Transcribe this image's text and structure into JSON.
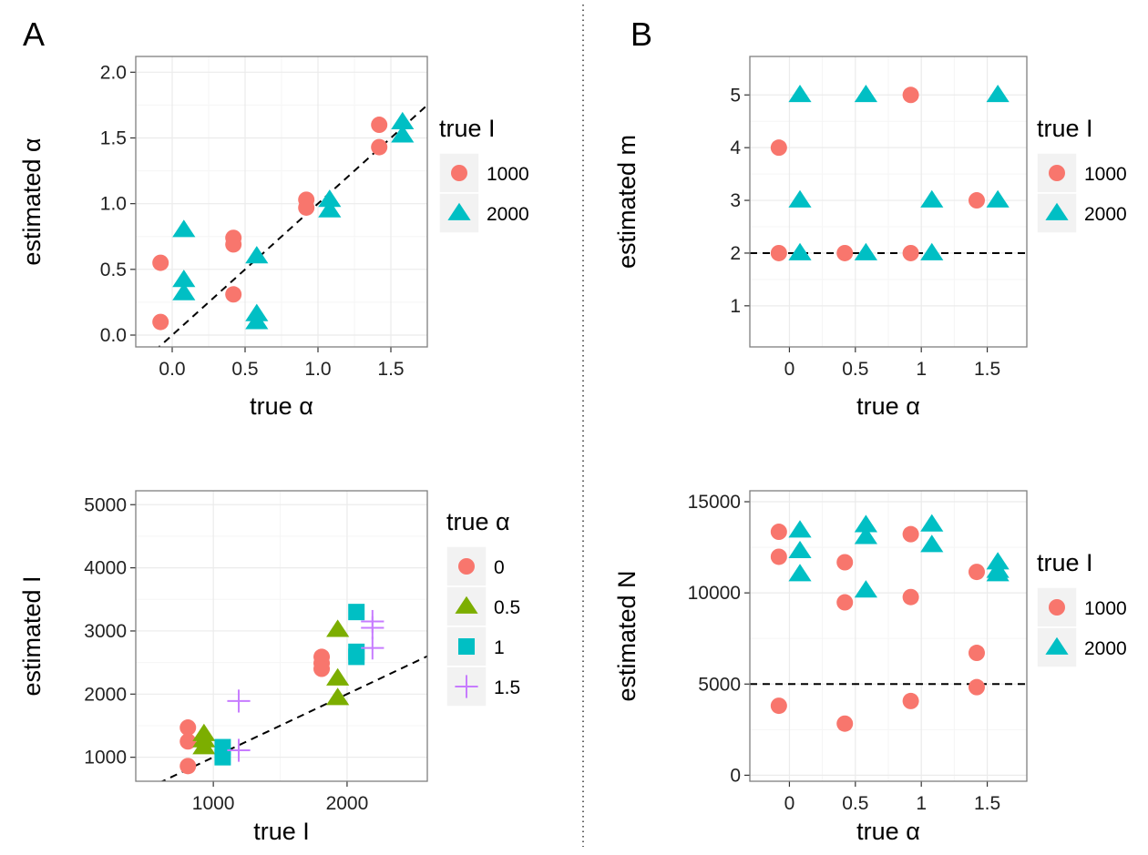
{
  "figure": {
    "panel_a": "A",
    "panel_b": "B"
  },
  "colors": {
    "c0": "#F8766D",
    "c1": "#7CAE00",
    "c2": "#00BFC4",
    "c3": "#C77CFF",
    "grid": "#ebebeb",
    "frame": "#7f7f7f"
  },
  "chart_data": [
    {
      "id": "tl",
      "type": "scatter",
      "xlabel": "true α",
      "ylabel": "estimated α",
      "xlim": [
        -0.25,
        1.75
      ],
      "ylim": [
        -0.09,
        2.12
      ],
      "xticks": [
        0.0,
        0.5,
        1.0,
        1.5
      ],
      "xtick_labels": [
        "0.0",
        "0.5",
        "1.0",
        "1.5"
      ],
      "yticks": [
        0.0,
        0.5,
        1.0,
        1.5,
        2.0
      ],
      "ytick_labels": [
        "0.0",
        "0.5",
        "1.0",
        "1.5",
        "2.0"
      ],
      "reference_line": {
        "style": "dashed",
        "slope": 1,
        "intercept": 0
      },
      "legend": {
        "title": "true I",
        "position": "right"
      },
      "series": [
        {
          "name": "1000",
          "shape": "circle",
          "color": "#F8766D",
          "points": [
            [
              -0.08,
              0.55
            ],
            [
              -0.08,
              0.1
            ],
            [
              0.42,
              0.74
            ],
            [
              0.42,
              0.69
            ],
            [
              0.42,
              0.31
            ],
            [
              0.92,
              1.03
            ],
            [
              0.92,
              0.97
            ],
            [
              1.42,
              1.6
            ],
            [
              1.42,
              1.43
            ]
          ]
        },
        {
          "name": "2000",
          "shape": "triangle",
          "color": "#00BFC4",
          "points": [
            [
              0.08,
              0.8
            ],
            [
              0.08,
              0.42
            ],
            [
              0.08,
              0.32
            ],
            [
              0.58,
              0.6
            ],
            [
              0.58,
              0.16
            ],
            [
              0.58,
              0.1
            ],
            [
              1.08,
              1.03
            ],
            [
              1.08,
              0.95
            ],
            [
              1.58,
              1.62
            ],
            [
              1.58,
              1.52
            ]
          ]
        }
      ]
    },
    {
      "id": "tr",
      "type": "scatter",
      "xlabel": "true α",
      "ylabel": "estimated m",
      "xlim": [
        -0.3,
        1.8
      ],
      "ylim": [
        0.22,
        5.73
      ],
      "xticks": [
        0,
        0.5,
        1,
        1.5
      ],
      "xtick_labels": [
        "0",
        "0.5",
        "1",
        "1.5"
      ],
      "yticks": [
        1,
        2,
        3,
        4,
        5
      ],
      "ytick_labels": [
        "1",
        "2",
        "3",
        "4",
        "5"
      ],
      "reference_line": {
        "style": "dashed",
        "y": 2
      },
      "legend": {
        "title": "true I",
        "position": "right"
      },
      "series": [
        {
          "name": "1000",
          "shape": "circle",
          "color": "#F8766D",
          "points": [
            [
              -0.08,
              4
            ],
            [
              -0.08,
              2
            ],
            [
              0.42,
              2
            ],
            [
              0.92,
              5
            ],
            [
              0.92,
              2
            ],
            [
              1.42,
              3
            ]
          ]
        },
        {
          "name": "2000",
          "shape": "triangle",
          "color": "#00BFC4",
          "points": [
            [
              0.08,
              5
            ],
            [
              0.08,
              3
            ],
            [
              0.08,
              2
            ],
            [
              0.58,
              5
            ],
            [
              0.58,
              2
            ],
            [
              1.08,
              3
            ],
            [
              1.08,
              2
            ],
            [
              1.58,
              5
            ],
            [
              1.58,
              3
            ]
          ]
        }
      ]
    },
    {
      "id": "bl",
      "type": "scatter",
      "xlabel": "true I",
      "ylabel": "estimated I",
      "xlim": [
        420,
        2600
      ],
      "ylim": [
        620,
        5220
      ],
      "xticks": [
        1000,
        2000
      ],
      "xtick_labels": [
        "1000",
        "2000"
      ],
      "yticks": [
        1000,
        2000,
        3000,
        4000,
        5000
      ],
      "ytick_labels": [
        "1000",
        "2000",
        "3000",
        "4000",
        "5000"
      ],
      "reference_line": {
        "style": "dashed",
        "slope": 1,
        "intercept": 0
      },
      "legend": {
        "title": "true α",
        "position": "right"
      },
      "series": [
        {
          "name": "0",
          "shape": "circle",
          "color": "#F8766D",
          "points": [
            [
              810,
              1470
            ],
            [
              810,
              1250
            ],
            [
              810,
              860
            ],
            [
              1810,
              2590
            ],
            [
              1810,
              2490
            ],
            [
              1810,
              2400
            ]
          ]
        },
        {
          "name": "0.5",
          "shape": "triangle",
          "color": "#7CAE00",
          "points": [
            [
              930,
              1370
            ],
            [
              930,
              1270
            ],
            [
              930,
              1160
            ],
            [
              1930,
              3020
            ],
            [
              1930,
              2250
            ],
            [
              1930,
              1940
            ]
          ]
        },
        {
          "name": "1",
          "shape": "square",
          "color": "#00BFC4",
          "points": [
            [
              1070,
              1160
            ],
            [
              1070,
              1000
            ],
            [
              2070,
              3300
            ],
            [
              2070,
              2670
            ],
            [
              2070,
              2590
            ]
          ]
        },
        {
          "name": "1.5",
          "shape": "cross",
          "color": "#C77CFF",
          "points": [
            [
              1190,
              1890
            ],
            [
              1190,
              1110
            ],
            [
              2190,
              3150
            ],
            [
              2190,
              3050
            ],
            [
              2190,
              2730
            ]
          ]
        }
      ]
    },
    {
      "id": "br",
      "type": "scatter",
      "xlabel": "true α",
      "ylabel": "estimated N",
      "xlim": [
        -0.3,
        1.8
      ],
      "ylim": [
        -330,
        15600
      ],
      "xticks": [
        0,
        0.5,
        1,
        1.5
      ],
      "xtick_labels": [
        "0",
        "0.5",
        "1",
        "1.5"
      ],
      "yticks": [
        0,
        5000,
        10000,
        15000
      ],
      "ytick_labels": [
        "0",
        "5000",
        "10000",
        "15000"
      ],
      "reference_line": {
        "style": "dashed",
        "y": 5000
      },
      "legend": {
        "title": "true I",
        "position": "right"
      },
      "series": [
        {
          "name": "1000",
          "shape": "circle",
          "color": "#F8766D",
          "points": [
            [
              -0.08,
              13350
            ],
            [
              -0.08,
              11980
            ],
            [
              -0.08,
              3810
            ],
            [
              0.42,
              11680
            ],
            [
              0.42,
              9480
            ],
            [
              0.42,
              2830
            ],
            [
              0.92,
              13220
            ],
            [
              0.92,
              9770
            ],
            [
              0.92,
              4070
            ],
            [
              1.42,
              11150
            ],
            [
              1.42,
              6710
            ],
            [
              1.42,
              4830
            ]
          ]
        },
        {
          "name": "2000",
          "shape": "triangle",
          "color": "#00BFC4",
          "points": [
            [
              0.08,
              13430
            ],
            [
              0.08,
              12300
            ],
            [
              0.08,
              11030
            ],
            [
              0.58,
              13720
            ],
            [
              0.58,
              13070
            ],
            [
              0.58,
              10140
            ],
            [
              1.08,
              13760
            ],
            [
              1.08,
              12630
            ],
            [
              1.58,
              11680
            ],
            [
              1.58,
              11220
            ],
            [
              1.58,
              11030
            ]
          ]
        }
      ]
    }
  ]
}
